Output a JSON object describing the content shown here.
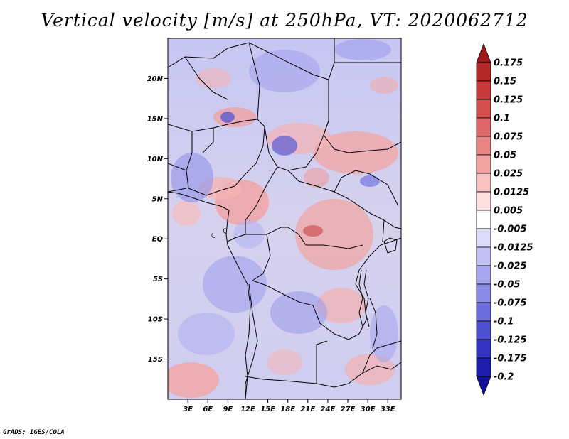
{
  "title": "Vertical velocity [m/s] at 250hPa, VT: 2020062712",
  "credit": "GrADS: IGES/COLA",
  "map": {
    "lon_range": [
      0,
      35
    ],
    "lat_range": [
      -20,
      25
    ],
    "lat_labels": [
      "20N",
      "15N",
      "10N",
      "5N",
      "EQ",
      "5S",
      "10S",
      "15S"
    ],
    "lat_values": [
      20,
      15,
      10,
      5,
      0,
      -5,
      -10,
      -15
    ],
    "lon_labels": [
      "3E",
      "6E",
      "9E",
      "12E",
      "15E",
      "18E",
      "21E",
      "24E",
      "27E",
      "30E",
      "33E"
    ],
    "lon_values": [
      3,
      6,
      9,
      12,
      15,
      18,
      21,
      24,
      27,
      30,
      33
    ]
  },
  "colorbar": {
    "labels": [
      "0.175",
      "0.15",
      "0.125",
      "0.1",
      "0.075",
      "0.05",
      "0.025",
      "0.0125",
      "0.005",
      "-0.005",
      "-0.0125",
      "-0.025",
      "-0.05",
      "-0.075",
      "-0.1",
      "-0.125",
      "-0.175",
      "-0.2"
    ],
    "colors": [
      "#a01818",
      "#b42828",
      "#c83a3a",
      "#d44e4e",
      "#e06868",
      "#ea8484",
      "#f2a2a2",
      "#f8c2c2",
      "#fde0e0",
      "#ffffff",
      "#dcdcfa",
      "#c2c2f6",
      "#a6a6f0",
      "#8a8ae8",
      "#6c6cde",
      "#5050d2",
      "#3434c2",
      "#1e1eac",
      "#10109a"
    ]
  }
}
